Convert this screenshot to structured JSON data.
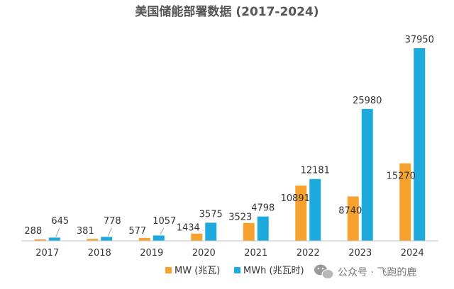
{
  "chart_data": {
    "type": "bar",
    "title": "美国储能部署数据 (2017-2024)",
    "categories": [
      "2017",
      "2018",
      "2019",
      "2020",
      "2021",
      "2022",
      "2023",
      "2024"
    ],
    "series": [
      {
        "name": "MW (兆瓦)",
        "color": "#F7A12F",
        "values": [
          288,
          381,
          577,
          1434,
          3523,
          10891,
          8740,
          15270
        ]
      },
      {
        "name": "MWh (兆瓦时)",
        "color": "#1EAADC",
        "values": [
          645,
          778,
          1057,
          3575,
          4798,
          12181,
          25980,
          37950
        ]
      }
    ],
    "ylim": [
      0,
      40000
    ],
    "grid": false,
    "legend_position": "bottom-center",
    "xlabel": "",
    "ylabel": ""
  },
  "watermark": {
    "icon": "wechat-icon",
    "text": "公众号 · 飞跑的鹿"
  }
}
